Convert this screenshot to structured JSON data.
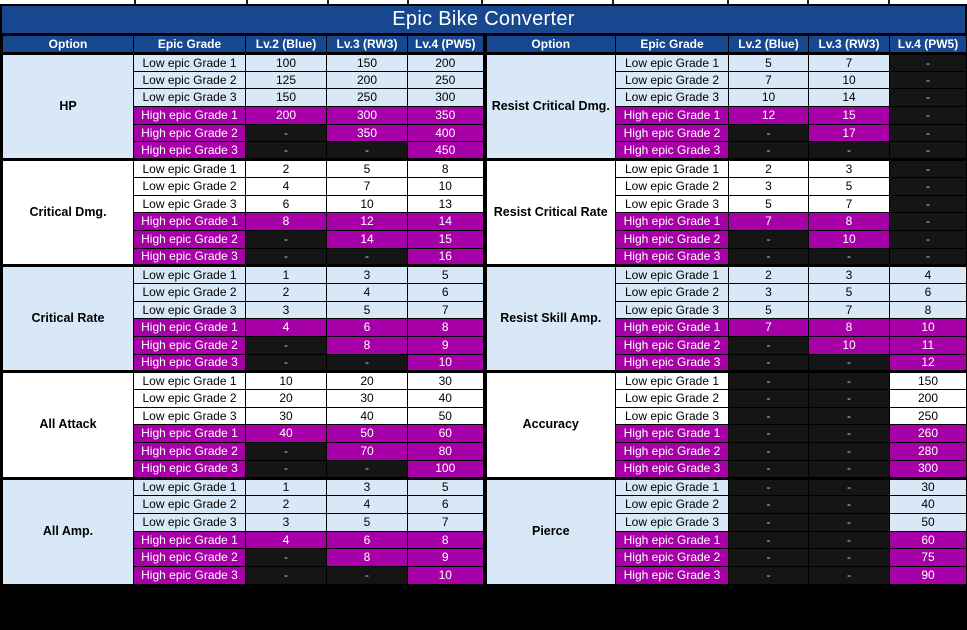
{
  "title": "Epic Bike Converter",
  "columns": [
    "Option",
    "Epic Grade",
    "Lv.2 (Blue)",
    "Lv.3 (RW3)",
    "Lv.4 (PW5)"
  ],
  "grade_labels": [
    "Low epic Grade 1",
    "Low epic Grade 2",
    "Low epic Grade 3",
    "High epic Grade 1",
    "High epic Grade 2",
    "High epic Grade 3"
  ],
  "colors": {
    "header_blue": "#17478F",
    "light_blue": "#D9E8F6",
    "magenta": "#A800A8",
    "empty_black": "#151515",
    "dash_text": "#D0D0D0"
  },
  "empty_marker": "-",
  "tables": {
    "left": {
      "sections": [
        {
          "option": "HP",
          "tint": "blue",
          "values": [
            [
              "100",
              "150",
              "200"
            ],
            [
              "125",
              "200",
              "250"
            ],
            [
              "150",
              "250",
              "300"
            ],
            [
              "200",
              "300",
              "350"
            ],
            [
              "-",
              "350",
              "400"
            ],
            [
              "-",
              "-",
              "450"
            ]
          ]
        },
        {
          "option": "Critical Dmg.",
          "tint": "white",
          "values": [
            [
              "2",
              "5",
              "8"
            ],
            [
              "4",
              "7",
              "10"
            ],
            [
              "6",
              "10",
              "13"
            ],
            [
              "8",
              "12",
              "14"
            ],
            [
              "-",
              "14",
              "15"
            ],
            [
              "-",
              "-",
              "16"
            ]
          ]
        },
        {
          "option": "Critical Rate",
          "tint": "blue",
          "values": [
            [
              "1",
              "3",
              "5"
            ],
            [
              "2",
              "4",
              "6"
            ],
            [
              "3",
              "5",
              "7"
            ],
            [
              "4",
              "6",
              "8"
            ],
            [
              "-",
              "8",
              "9"
            ],
            [
              "-",
              "-",
              "10"
            ]
          ]
        },
        {
          "option": "All Attack",
          "tint": "white",
          "values": [
            [
              "10",
              "20",
              "30"
            ],
            [
              "20",
              "30",
              "40"
            ],
            [
              "30",
              "40",
              "50"
            ],
            [
              "40",
              "50",
              "60"
            ],
            [
              "-",
              "70",
              "80"
            ],
            [
              "-",
              "-",
              "100"
            ]
          ]
        },
        {
          "option": "All Amp.",
          "tint": "blue",
          "values": [
            [
              "1",
              "3",
              "5"
            ],
            [
              "2",
              "4",
              "6"
            ],
            [
              "3",
              "5",
              "7"
            ],
            [
              "4",
              "6",
              "8"
            ],
            [
              "-",
              "8",
              "9"
            ],
            [
              "-",
              "-",
              "10"
            ]
          ]
        }
      ]
    },
    "right": {
      "sections": [
        {
          "option": "Resist Critical Dmg.",
          "tint": "blue",
          "values": [
            [
              "5",
              "7",
              "-"
            ],
            [
              "7",
              "10",
              "-"
            ],
            [
              "10",
              "14",
              "-"
            ],
            [
              "12",
              "15",
              "-"
            ],
            [
              "-",
              "17",
              "-"
            ],
            [
              "-",
              "-",
              "-"
            ]
          ]
        },
        {
          "option": "Resist Critical Rate",
          "tint": "white",
          "values": [
            [
              "2",
              "3",
              "-"
            ],
            [
              "3",
              "5",
              "-"
            ],
            [
              "5",
              "7",
              "-"
            ],
            [
              "7",
              "8",
              "-"
            ],
            [
              "-",
              "10",
              "-"
            ],
            [
              "-",
              "-",
              "-"
            ]
          ]
        },
        {
          "option": "Resist Skill Amp.",
          "tint": "blue",
          "values": [
            [
              "2",
              "3",
              "4"
            ],
            [
              "3",
              "5",
              "6"
            ],
            [
              "5",
              "7",
              "8"
            ],
            [
              "7",
              "8",
              "10"
            ],
            [
              "-",
              "10",
              "11"
            ],
            [
              "-",
              "-",
              "12"
            ]
          ]
        },
        {
          "option": "Accuracy",
          "tint": "white",
          "values": [
            [
              "-",
              "-",
              "150"
            ],
            [
              "-",
              "-",
              "200"
            ],
            [
              "-",
              "-",
              "250"
            ],
            [
              "-",
              "-",
              "260"
            ],
            [
              "-",
              "-",
              "280"
            ],
            [
              "-",
              "-",
              "300"
            ]
          ]
        },
        {
          "option": "Pierce",
          "tint": "blue",
          "values": [
            [
              "-",
              "-",
              "30"
            ],
            [
              "-",
              "-",
              "40"
            ],
            [
              "-",
              "-",
              "50"
            ],
            [
              "-",
              "-",
              "60"
            ],
            [
              "-",
              "-",
              "75"
            ],
            [
              "-",
              "-",
              "90"
            ]
          ]
        }
      ]
    }
  }
}
